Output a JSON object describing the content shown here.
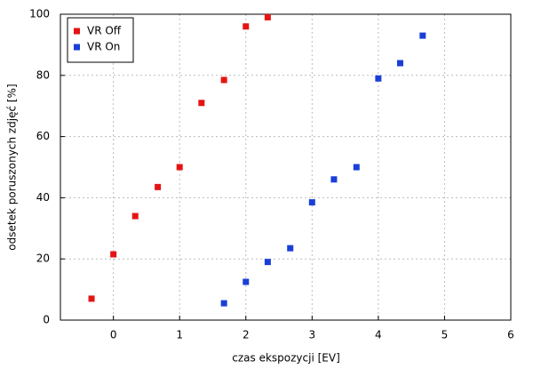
{
  "chart_data": {
    "type": "scatter",
    "x_label": "czas ekspozycji [EV]",
    "y_label": "odsetek poruszonych zdjęć [%]",
    "xlim": [
      -0.8,
      6
    ],
    "xticks": [
      0,
      1,
      2,
      3,
      4,
      5,
      6
    ],
    "ylim": [
      0,
      100
    ],
    "yticks": [
      0,
      20,
      40,
      60,
      80,
      100
    ],
    "grid": true,
    "legend": "top-left",
    "series": [
      {
        "name": "VR Off",
        "color": "#e41414",
        "x": [
          -0.33,
          0,
          0.33,
          0.67,
          1,
          1.33,
          1.67,
          2,
          2.33
        ],
        "values": [
          7,
          21.5,
          34,
          43.5,
          50,
          71,
          78.5,
          96,
          99
        ]
      },
      {
        "name": "VR On",
        "color": "#1a3fd8",
        "x": [
          1.67,
          2,
          2.33,
          2.67,
          3,
          3.33,
          3.67,
          4,
          4.33,
          4.67
        ],
        "values": [
          5.5,
          12.5,
          19,
          23.5,
          38.5,
          46,
          50,
          79,
          84,
          93
        ]
      }
    ]
  }
}
